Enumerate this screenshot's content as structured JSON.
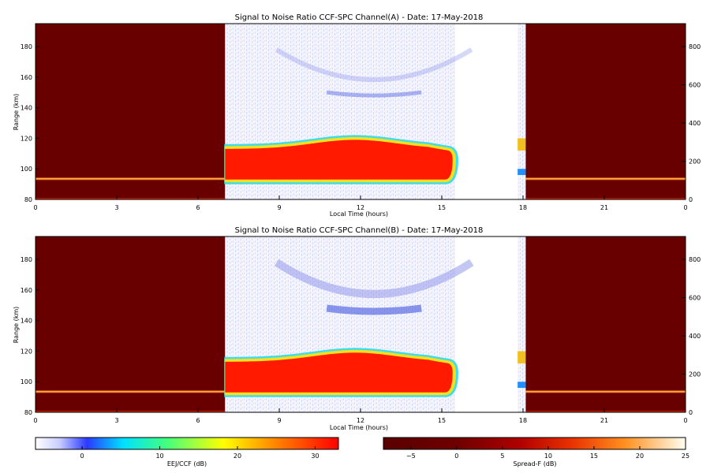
{
  "chart_data": [
    {
      "type": "heatmap",
      "title": "Signal to Noise Ratio CCF-SPC Channel(A) - Date: 17-May-2018",
      "xlabel": "Local Time (hours)",
      "ylabel": "Range (km)",
      "xlim": [
        0,
        24
      ],
      "ylim": [
        80,
        195
      ],
      "xticks": [
        "0",
        "3",
        "6",
        "9",
        "12",
        "15",
        "18",
        "21",
        "0"
      ],
      "yticks": [
        "80",
        "100",
        "120",
        "140",
        "160",
        "180"
      ],
      "right_axis_ylim": [
        0,
        920
      ],
      "right_yticks": [
        "0",
        "200",
        "400",
        "600",
        "800"
      ],
      "regions": [
        {
          "name": "Spread-F",
          "x": [
            0,
            7.0
          ],
          "colorbar": "Spread-F"
        },
        {
          "name": "EEJ/CCF",
          "x": [
            7.0,
            15.5
          ],
          "colorbar": "EEJ/CCF"
        },
        {
          "name": "EEJ/CCF",
          "x": [
            17.8,
            18.1
          ],
          "colorbar": "EEJ/CCF"
        },
        {
          "name": "Spread-F",
          "x": [
            18.1,
            24.0
          ],
          "colorbar": "Spread-F"
        }
      ],
      "features": [
        {
          "name": "E-region echo layer",
          "x": [
            7.0,
            15.4
          ],
          "range_km": [
            93,
            121
          ],
          "peak_snr_db": 32
        },
        {
          "name": "150 km echoes",
          "x": [
            10.5,
            14.5
          ],
          "range_km": [
            148,
            158
          ],
          "snr_db": 3
        },
        {
          "name": "low-altitude thin layer",
          "x": [
            0,
            7.0
          ],
          "range_km": [
            92,
            95
          ]
        }
      ]
    },
    {
      "type": "heatmap",
      "title": "Signal to Noise Ratio CCF-SPC Channel(B) - Date: 17-May-2018",
      "xlabel": "Local Time (hours)",
      "ylabel": "Range (km)",
      "xlim": [
        0,
        24
      ],
      "ylim": [
        80,
        195
      ],
      "xticks": [
        "0",
        "3",
        "6",
        "9",
        "12",
        "15",
        "18",
        "21",
        "0"
      ],
      "yticks": [
        "80",
        "100",
        "120",
        "140",
        "160",
        "180"
      ],
      "right_axis_ylim": [
        0,
        920
      ],
      "right_yticks": [
        "0",
        "200",
        "400",
        "600",
        "800"
      ],
      "regions": [
        {
          "name": "Spread-F",
          "x": [
            0,
            7.0
          ],
          "colorbar": "Spread-F"
        },
        {
          "name": "EEJ/CCF",
          "x": [
            7.0,
            15.5
          ],
          "colorbar": "EEJ/CCF"
        },
        {
          "name": "EEJ/CCF",
          "x": [
            17.8,
            18.1
          ],
          "colorbar": "EEJ/CCF"
        },
        {
          "name": "Spread-F",
          "x": [
            18.1,
            24.0
          ],
          "colorbar": "Spread-F"
        }
      ],
      "features": [
        {
          "name": "E-region echo layer",
          "x": [
            7.0,
            15.4
          ],
          "range_km": [
            93,
            121
          ],
          "peak_snr_db": 32
        },
        {
          "name": "150 km echoes",
          "x": [
            10.5,
            14.5
          ],
          "range_km": [
            146,
            158
          ],
          "snr_db": 4
        },
        {
          "name": "low-altitude thin layer",
          "x": [
            0,
            7.0
          ],
          "range_km": [
            92,
            95
          ]
        }
      ]
    }
  ],
  "colorbars": [
    {
      "label": "EEJ/CCF (dB)",
      "range": [
        -6,
        33
      ],
      "ticks": [
        "0",
        "10",
        "20",
        "30"
      ],
      "colormap": "white-blue-cyan-green-yellow-red"
    },
    {
      "label": "Spread-F (dB)",
      "range": [
        -8,
        25
      ],
      "ticks": [
        "-5",
        "0",
        "5",
        "10",
        "15",
        "20",
        "25"
      ],
      "colormap": "darkred-red-orange-white"
    }
  ],
  "colors": {
    "spread_f_background": "#680000",
    "echo_core": "#ff1a00",
    "echo_edge_yellow": "#f0e020",
    "echo_edge_cyan": "#20d8e8",
    "background_noise": "#e8ecff"
  }
}
